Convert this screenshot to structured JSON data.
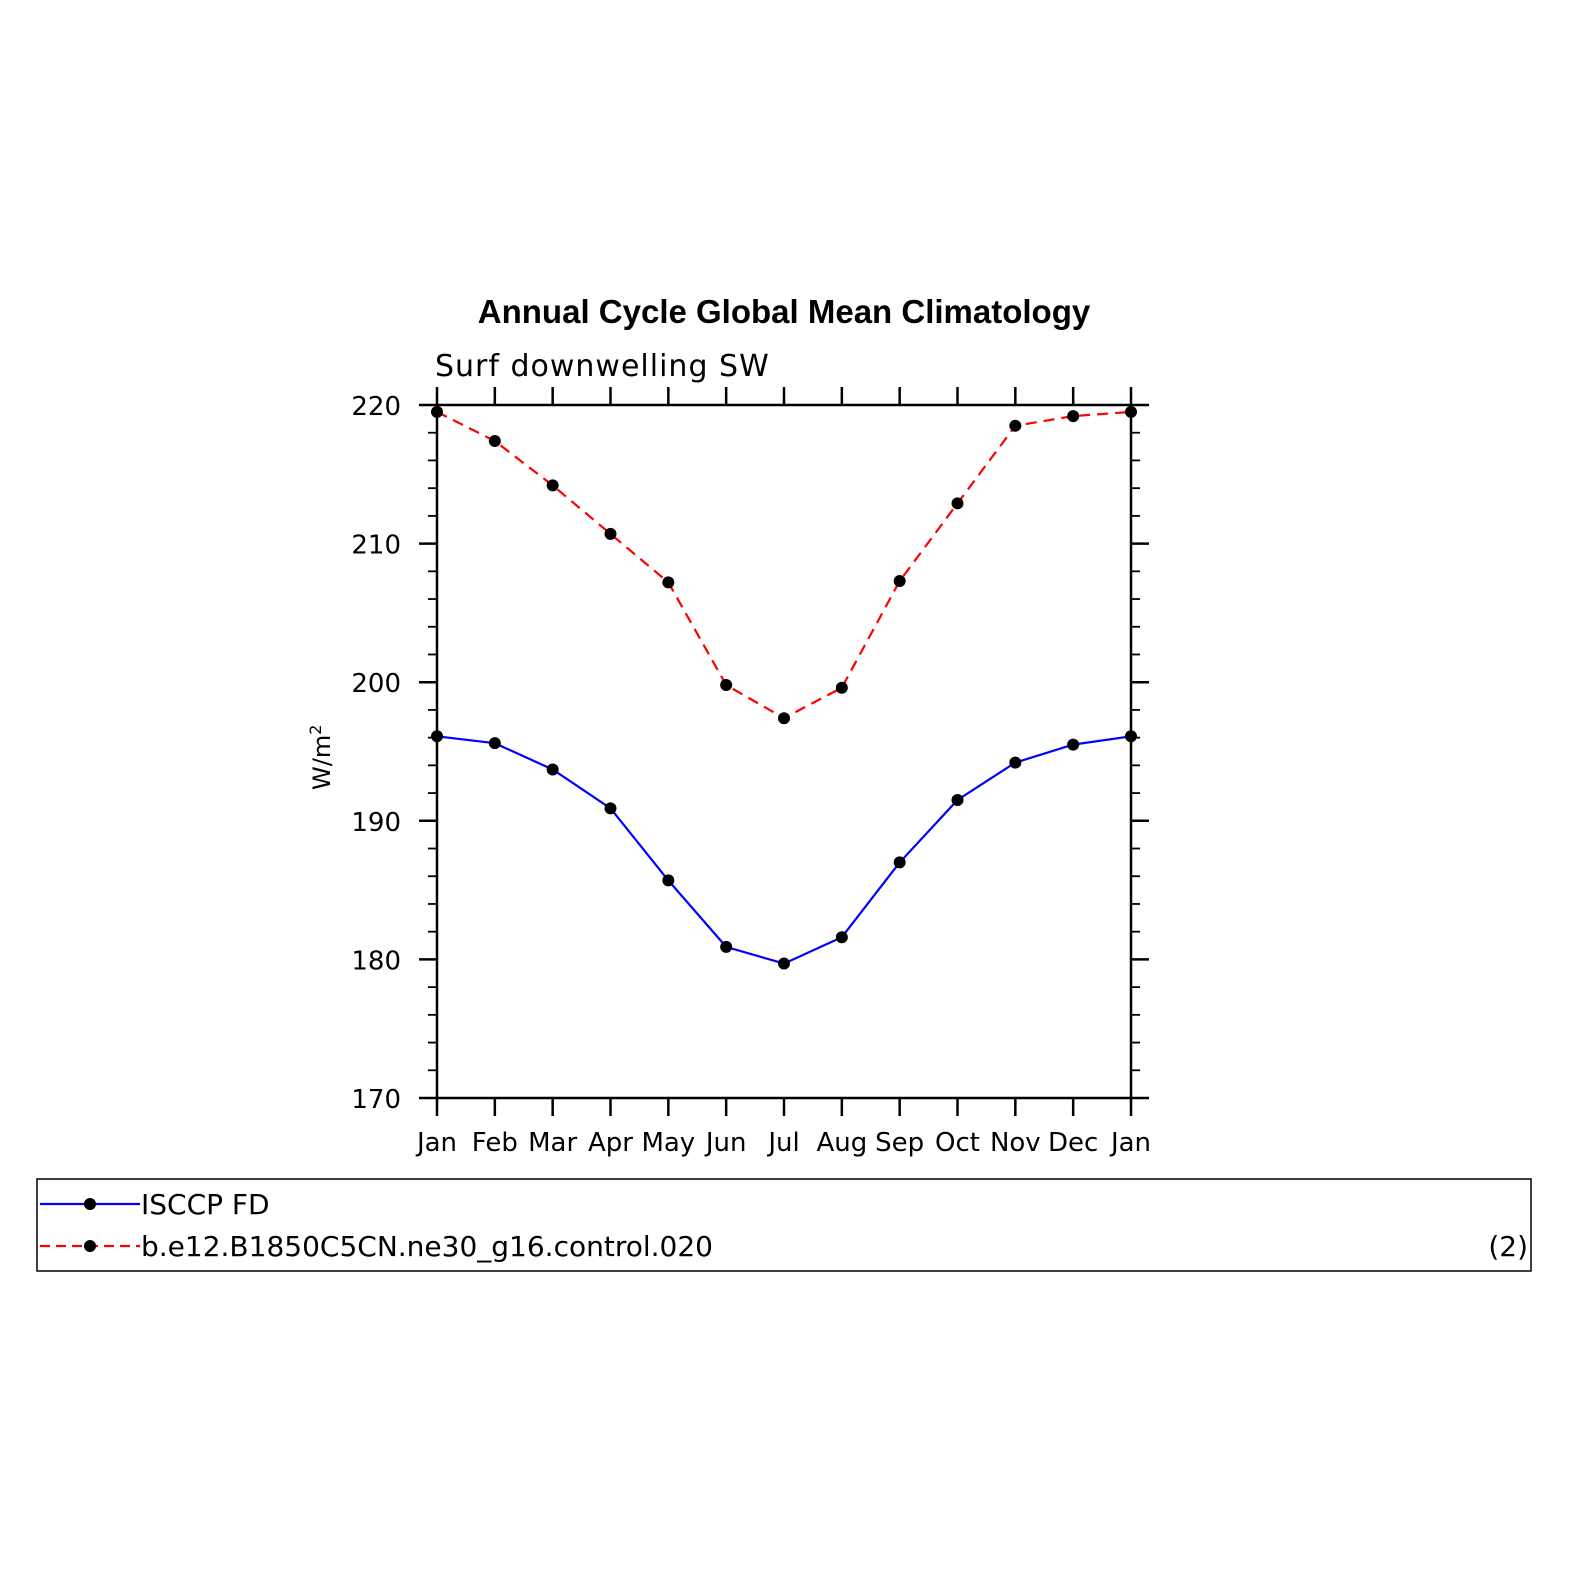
{
  "chart_data": {
    "type": "line",
    "title": "Annual Cycle Global Mean Climatology",
    "subtitle": "Surf downwelling SW",
    "ylabel": "W/m",
    "ylabel_sup": "2",
    "categories": [
      "Jan",
      "Feb",
      "Mar",
      "Apr",
      "May",
      "Jun",
      "Jul",
      "Aug",
      "Sep",
      "Oct",
      "Nov",
      "Dec",
      "Jan"
    ],
    "ylim": [
      170,
      220
    ],
    "yticks": [
      "170",
      "180",
      "190",
      "200",
      "210",
      "220"
    ],
    "series": [
      {
        "name": "ISCCP FD",
        "color": "#0000ff",
        "dash": "solid",
        "values": [
          196.1,
          195.6,
          193.7,
          190.9,
          185.7,
          180.9,
          179.7,
          181.6,
          187.0,
          191.5,
          194.2,
          195.5,
          196.1
        ]
      },
      {
        "name": "b.e12.B1850C5CN.ne30_g16.control.020",
        "color": "#ff0000",
        "dash": "dashed",
        "values": [
          219.5,
          217.4,
          214.2,
          210.7,
          207.2,
          199.8,
          197.4,
          199.6,
          207.3,
          212.9,
          218.5,
          219.2,
          219.5
        ]
      }
    ],
    "legend_note": "(2)"
  }
}
